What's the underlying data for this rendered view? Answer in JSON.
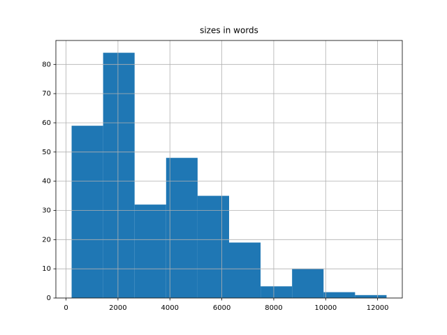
{
  "chart_data": {
    "type": "histogram",
    "title": "sizes in words",
    "bins": [
      215,
      1428,
      2641,
      3854,
      5067,
      6280,
      7493,
      8706,
      9919,
      11132,
      12345
    ],
    "values": [
      59,
      84,
      32,
      48,
      35,
      19,
      4,
      10,
      2,
      1
    ],
    "color": "#1f77b4",
    "xlim": [
      -391.5,
      12951.5
    ],
    "xticks": [
      0,
      2000,
      4000,
      6000,
      8000,
      10000,
      12000
    ],
    "ylim": [
      0,
      88.2
    ],
    "yticks": [
      0,
      10,
      20,
      30,
      40,
      50,
      60,
      70,
      80
    ],
    "grid": true
  }
}
